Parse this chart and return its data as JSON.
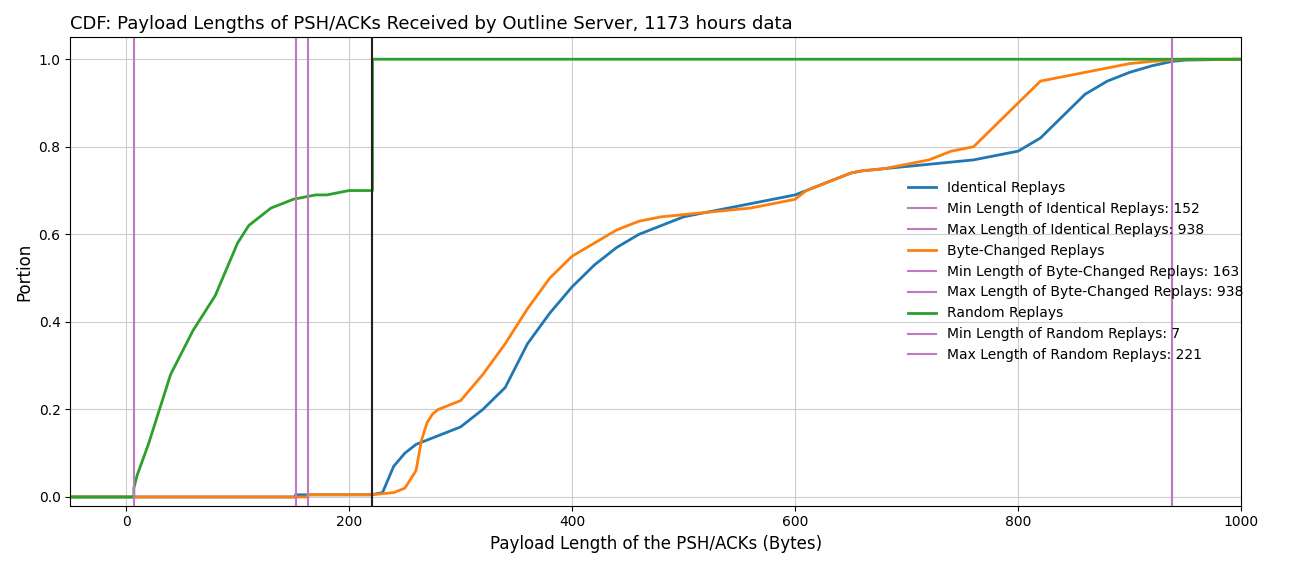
{
  "title": "CDF: Payload Lengths of PSH/ACKs Received by Outline Server, 1173 hours data",
  "xlabel": "Payload Length of the PSH/ACKs (Bytes)",
  "ylabel": "Portion",
  "xlim": [
    -50,
    1000
  ],
  "ylim": [
    -0.02,
    1.05
  ],
  "vlines": {
    "identical_min": 152,
    "identical_max": 938,
    "bytechanged_min": 163,
    "bytechanged_max": 938,
    "random_min": 7,
    "random_max": 221
  },
  "colors": {
    "identical": "#1f77b4",
    "bytechanged": "#ff7f0e",
    "random": "#2ca02c",
    "vline": "#c078c0",
    "black_vline": "#222222"
  },
  "legend": [
    "Identical Replays",
    "Min Length of Identical Replays: 152",
    "Max Length of Identical Replays: 938",
    "Byte-Changed Replays",
    "Min Length of Byte-Changed Replays: 163",
    "Max Length of Byte-Changed Replays: 938",
    "Random Replays",
    "Min Length of Random Replays: 7",
    "Max Length of Random Replays: 221"
  ],
  "background_color": "#ffffff",
  "grid_color": "#cccccc",
  "identical_x": [
    -50,
    152,
    152,
    200,
    210,
    220,
    230,
    240,
    250,
    260,
    270,
    280,
    290,
    300,
    320,
    340,
    360,
    380,
    400,
    420,
    440,
    460,
    480,
    500,
    520,
    540,
    560,
    580,
    600,
    610,
    620,
    630,
    640,
    650,
    660,
    680,
    700,
    720,
    740,
    760,
    780,
    800,
    820,
    840,
    860,
    880,
    900,
    920,
    938,
    950,
    1000
  ],
  "identical_y": [
    0,
    0,
    0.005,
    0.005,
    0.005,
    0.005,
    0.01,
    0.07,
    0.1,
    0.12,
    0.13,
    0.14,
    0.15,
    0.16,
    0.2,
    0.25,
    0.35,
    0.42,
    0.48,
    0.53,
    0.57,
    0.6,
    0.62,
    0.64,
    0.65,
    0.66,
    0.67,
    0.68,
    0.69,
    0.7,
    0.71,
    0.72,
    0.73,
    0.74,
    0.745,
    0.75,
    0.755,
    0.76,
    0.765,
    0.77,
    0.78,
    0.79,
    0.82,
    0.87,
    0.92,
    0.95,
    0.97,
    0.985,
    0.995,
    0.998,
    1.0
  ],
  "bytechanged_x": [
    -50,
    163,
    163,
    200,
    220,
    240,
    250,
    260,
    265,
    270,
    275,
    280,
    290,
    300,
    320,
    340,
    360,
    380,
    400,
    420,
    440,
    460,
    480,
    500,
    520,
    540,
    560,
    580,
    600,
    610,
    620,
    625,
    630,
    635,
    640,
    650,
    660,
    680,
    700,
    720,
    740,
    760,
    780,
    800,
    820,
    860,
    900,
    920,
    938,
    950,
    1000
  ],
  "bytechanged_y": [
    0,
    0,
    0.005,
    0.005,
    0.005,
    0.01,
    0.02,
    0.06,
    0.13,
    0.17,
    0.19,
    0.2,
    0.21,
    0.22,
    0.28,
    0.35,
    0.43,
    0.5,
    0.55,
    0.58,
    0.61,
    0.63,
    0.64,
    0.645,
    0.65,
    0.655,
    0.66,
    0.67,
    0.68,
    0.7,
    0.71,
    0.715,
    0.72,
    0.725,
    0.73,
    0.74,
    0.745,
    0.75,
    0.76,
    0.77,
    0.79,
    0.8,
    0.85,
    0.9,
    0.95,
    0.97,
    0.99,
    0.995,
    0.998,
    1.0,
    1.0
  ],
  "random_x": [
    -50,
    7,
    7,
    10,
    20,
    30,
    40,
    50,
    60,
    70,
    80,
    90,
    100,
    110,
    120,
    130,
    140,
    150,
    160,
    170,
    180,
    190,
    200,
    210,
    221,
    221,
    1000
  ],
  "random_y": [
    0,
    0,
    0.02,
    0.05,
    0.12,
    0.2,
    0.28,
    0.33,
    0.38,
    0.42,
    0.46,
    0.52,
    0.58,
    0.62,
    0.64,
    0.66,
    0.67,
    0.68,
    0.685,
    0.69,
    0.69,
    0.695,
    0.7,
    0.7,
    0.7,
    1.0,
    1.0
  ]
}
